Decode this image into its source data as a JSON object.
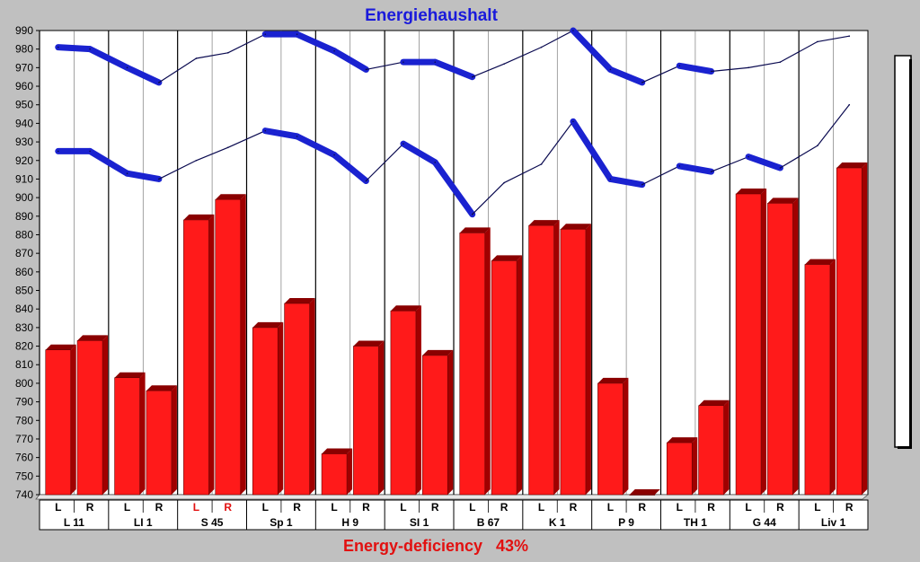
{
  "chart_data": {
    "type": "bar",
    "title": "Energiehaushalt",
    "footer_label": "Energy-deficiency",
    "footer_value": "43%",
    "ylim": [
      740,
      990
    ],
    "y_ticks": [
      740,
      750,
      760,
      770,
      780,
      790,
      800,
      810,
      820,
      830,
      840,
      850,
      860,
      870,
      880,
      890,
      900,
      910,
      920,
      930,
      940,
      950,
      960,
      970,
      980,
      990
    ],
    "groups": [
      {
        "label": "L 11",
        "sides": [
          "L",
          "R"
        ],
        "highlight": false
      },
      {
        "label": "LI 1",
        "sides": [
          "L",
          "R"
        ],
        "highlight": false
      },
      {
        "label": "S 45",
        "sides": [
          "L",
          "R"
        ],
        "highlight": true
      },
      {
        "label": "Sp 1",
        "sides": [
          "L",
          "R"
        ],
        "highlight": false
      },
      {
        "label": "H 9",
        "sides": [
          "L",
          "R"
        ],
        "highlight": false
      },
      {
        "label": "SI 1",
        "sides": [
          "L",
          "R"
        ],
        "highlight": false
      },
      {
        "label": "B 67",
        "sides": [
          "L",
          "R"
        ],
        "highlight": false
      },
      {
        "label": "K 1",
        "sides": [
          "L",
          "R"
        ],
        "highlight": false
      },
      {
        "label": "P 9",
        "sides": [
          "L",
          "R"
        ],
        "highlight": false
      },
      {
        "label": "TH 1",
        "sides": [
          "L",
          "R"
        ],
        "highlight": false
      },
      {
        "label": "G 44",
        "sides": [
          "L",
          "R"
        ],
        "highlight": false
      },
      {
        "label": "Liv 1",
        "sides": [
          "L",
          "R"
        ],
        "highlight": false
      }
    ],
    "series": [
      {
        "name": "bars",
        "kind": "bar",
        "values": [
          818,
          823,
          803,
          796,
          888,
          899,
          830,
          843,
          762,
          820,
          839,
          815,
          881,
          866,
          885,
          883,
          800,
          740,
          768,
          788,
          902,
          897,
          864,
          916
        ]
      },
      {
        "name": "upper band",
        "kind": "line",
        "values": [
          981,
          980,
          970,
          962,
          975,
          978,
          988,
          988,
          979,
          969,
          973,
          973,
          965,
          972,
          981,
          990,
          969,
          962,
          971,
          968,
          970,
          973,
          984,
          987
        ]
      },
      {
        "name": "lower band",
        "kind": "line",
        "values": [
          925,
          925,
          913,
          910,
          920,
          927,
          936,
          933,
          923,
          909,
          929,
          919,
          891,
          908,
          918,
          941,
          910,
          907,
          917,
          914,
          922,
          916,
          928,
          950
        ]
      }
    ],
    "colors": {
      "bar": "#ff1a1a",
      "bar_dark": "#8a0000",
      "bar_side": "#a00000",
      "line": "#1a22d0",
      "title": "#1a1adb",
      "footer": "#e21010",
      "highlight_text": "#e21010",
      "plot_bg": "#ffffff",
      "page_bg": "#c0c0c0"
    }
  }
}
